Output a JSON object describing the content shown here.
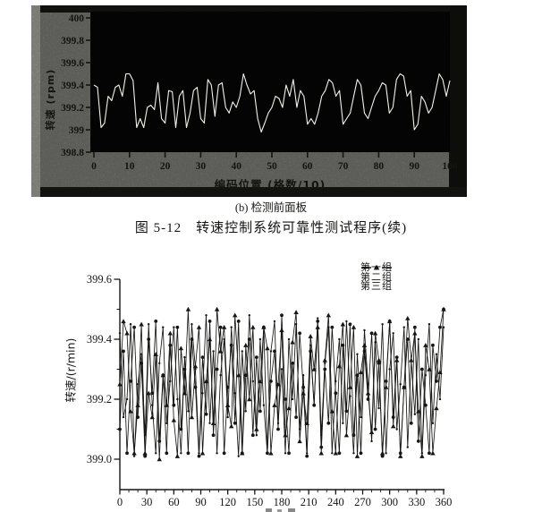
{
  "page": {
    "caption_sub": "(b) 检测前面板",
    "caption_fig": "图 5-12　转速控制系统可靠性测试程序(续)"
  },
  "colors": {
    "page_bg": "#ffffff",
    "panel_gray": "#8b8b85",
    "panel_light_strip": "#b9b9b2",
    "panel_edge_dark": "#191917",
    "plot_bg": "#070707",
    "trace_white": "#f2f2ea",
    "ink_black": "#161614"
  },
  "chart_data": [
    {
      "id": "front-panel-chart",
      "type": "line",
      "title": "",
      "xlabel": "编码位置 (格数/10)",
      "ylabel": "转速 (rpm)",
      "xlim": [
        0,
        100
      ],
      "ylim": [
        398.8,
        400
      ],
      "grid": false,
      "legend_position": "none",
      "xtick_values": [
        0,
        10,
        20,
        30,
        40,
        50,
        60,
        70,
        80,
        90,
        100
      ],
      "xtick_labels": [
        "0",
        "10",
        "20",
        "30",
        "40",
        "50",
        "60",
        "70",
        "80",
        "90",
        "100"
      ],
      "ytick_values": [
        398.8,
        399,
        399.2,
        399.4,
        399.6,
        399.8,
        400
      ],
      "ytick_labels": [
        "398.8",
        "399",
        "399.2",
        "399.4",
        "399.6",
        "399.8",
        "400"
      ],
      "x_step": 1,
      "values": [
        399.4,
        399.38,
        399.02,
        399.06,
        399.3,
        399.26,
        399.38,
        399.4,
        399.3,
        399.5,
        399.5,
        399.44,
        399.02,
        399.1,
        399.02,
        399.2,
        399.22,
        399.18,
        399.42,
        399.1,
        399.06,
        399.35,
        399.34,
        399.02,
        399.3,
        399.35,
        399.02,
        399.15,
        399.35,
        399.38,
        399.1,
        399.06,
        399.45,
        399.4,
        399.12,
        399.4,
        399.42,
        399.2,
        399.15,
        399.25,
        399.2,
        399.3,
        399.5,
        399.4,
        399.32,
        399.35,
        399.1,
        398.98,
        399.06,
        399.15,
        399.2,
        399.3,
        399.28,
        399.2,
        399.4,
        399.3,
        399.45,
        399.2,
        399.35,
        399.3,
        399.05,
        399.1,
        399.05,
        399.15,
        399.3,
        399.35,
        399.45,
        399.42,
        399.3,
        399.35,
        399.05,
        399.1,
        399.15,
        399.3,
        399.45,
        399.4,
        399.15,
        399.1,
        399.2,
        399.3,
        399.35,
        399.42,
        399.4,
        399.15,
        399.2,
        399.45,
        399.5,
        399.48,
        399.3,
        399.35,
        399.0,
        399.05,
        399.3,
        399.25,
        399.15,
        399.2,
        399.35,
        399.5,
        399.45,
        399.3,
        399.44
      ]
    },
    {
      "id": "reliability-test-chart",
      "type": "line",
      "title": "",
      "xlabel": "",
      "ylabel": "转速/(r/min)",
      "xlim": [
        0,
        360
      ],
      "ylim": [
        398.9,
        399.62
      ],
      "grid": false,
      "legend_position": "top-right",
      "xtick_values": [
        0,
        30,
        60,
        90,
        120,
        150,
        180,
        210,
        240,
        270,
        300,
        330,
        360
      ],
      "xtick_labels": [
        "0",
        "30",
        "60",
        "90",
        "120",
        "150",
        "180",
        "210",
        "240",
        "270",
        "300",
        "330",
        "360"
      ],
      "ytick_values": [
        399.0,
        399.2,
        399.4,
        399.6
      ],
      "ytick_labels": [
        "399.0",
        "399.2",
        "399.4",
        "399.6"
      ],
      "ytick_minor": [
        399.1,
        399.3,
        399.5
      ],
      "x_step": 4,
      "series": [
        {
          "name": "第一组",
          "marker": "triangle",
          "values": [
            399.25,
            399.46,
            399.42,
            399.16,
            399.02,
            399.18,
            399.45,
            399.02,
            399.22,
            399.14,
            399.35,
            399.0,
            399.28,
            399.18,
            399.42,
            399.13,
            399.01,
            399.37,
            399.22,
            399.5,
            399.14,
            399.31,
            399.44,
            399.02,
            399.26,
            399.4,
            399.12,
            399.5,
            399.36,
            399.44,
            399.18,
            399.11,
            399.48,
            399.28,
            399.02,
            399.38,
            399.2,
            399.44,
            399.1,
            399.26,
            399.44,
            399.37,
            399.02,
            399.18,
            399.25,
            399.43,
            399.08,
            399.17,
            399.39,
            399.49,
            399.06,
            399.22,
            399.12,
            399.41,
            399.3,
            399.44,
            399.02,
            399.33,
            399.48,
            399.16,
            399.02,
            399.31,
            399.45,
            399.08,
            399.24,
            399.44,
            399.01,
            399.29,
            399.38,
            399.22,
            399.09,
            399.42,
            399.33,
            399.02,
            399.24,
            399.46,
            399.11,
            399.33,
            399.01,
            399.24,
            399.47,
            399.33,
            399.42,
            399.16,
            399.01,
            399.38,
            399.3,
            399.02,
            399.17,
            399.29,
            399.5
          ]
        },
        {
          "name": "第二组",
          "marker": "dot",
          "values": [
            399.42,
            399.14,
            399.2,
            399.45,
            399.01,
            399.25,
            399.35,
            399.08,
            399.45,
            399.18,
            399.02,
            399.32,
            399.44,
            399.12,
            399.26,
            399.44,
            399.2,
            399.02,
            399.34,
            399.16,
            399.45,
            399.3,
            399.02,
            399.22,
            399.48,
            399.12,
            399.36,
            399.02,
            399.28,
            399.4,
            399.14,
            399.44,
            399.22,
            399.01,
            399.36,
            399.16,
            399.48,
            399.26,
            399.08,
            399.4,
            399.18,
            399.02,
            399.36,
            399.46,
            399.12,
            399.3,
            399.02,
            399.4,
            399.2,
            399.45,
            399.1,
            399.28,
            399.02,
            399.38,
            399.18,
            399.47,
            399.08,
            399.32,
            399.44,
            399.02,
            399.26,
            399.4,
            399.12,
            399.46,
            399.21,
            399.02,
            399.35,
            399.14,
            399.43,
            399.25,
            399.06,
            399.39,
            399.17,
            399.45,
            399.02,
            399.3,
            399.42,
            399.1,
            399.25,
            399.44,
            399.04,
            399.33,
            399.15,
            399.4,
            399.02,
            399.28,
            399.45,
            399.12,
            399.35,
            399.2,
            399.44
          ]
        },
        {
          "name": "第三组",
          "marker": "circle",
          "values": [
            399.1,
            399.36,
            399.02,
            399.26,
            399.44,
            399.14,
            399.32,
            399.01,
            399.4,
            399.22,
            399.46,
            399.06,
            399.28,
            399.02,
            399.38,
            399.18,
            399.44,
            399.1,
            399.3,
            399.02,
            399.4,
            399.24,
            399.01,
            399.34,
            399.15,
            399.46,
            399.08,
            399.3,
            399.44,
            399.02,
            399.24,
            399.38,
            399.12,
            399.46,
            399.02,
            399.28,
            399.4,
            399.08,
            399.34,
            399.16,
            399.44,
            399.02,
            399.26,
            399.36,
            399.1,
            399.48,
            399.2,
            399.02,
            399.32,
            399.14,
            399.42,
            399.24,
            399.01,
            399.36,
            399.18,
            399.46,
            399.04,
            399.3,
            399.12,
            399.44,
            399.22,
            399.02,
            399.38,
            399.16,
            399.45,
            399.08,
            399.28,
            399.02,
            399.36,
            399.2,
            399.42,
            399.1,
            399.32,
            399.01,
            399.26,
            399.46,
            399.14,
            399.34,
            399.02,
            399.24,
            399.4,
            399.12,
            399.44,
            399.06,
            399.3,
            399.18,
            399.02,
            399.38,
            399.26,
            399.44,
            399.5
          ]
        }
      ]
    }
  ]
}
